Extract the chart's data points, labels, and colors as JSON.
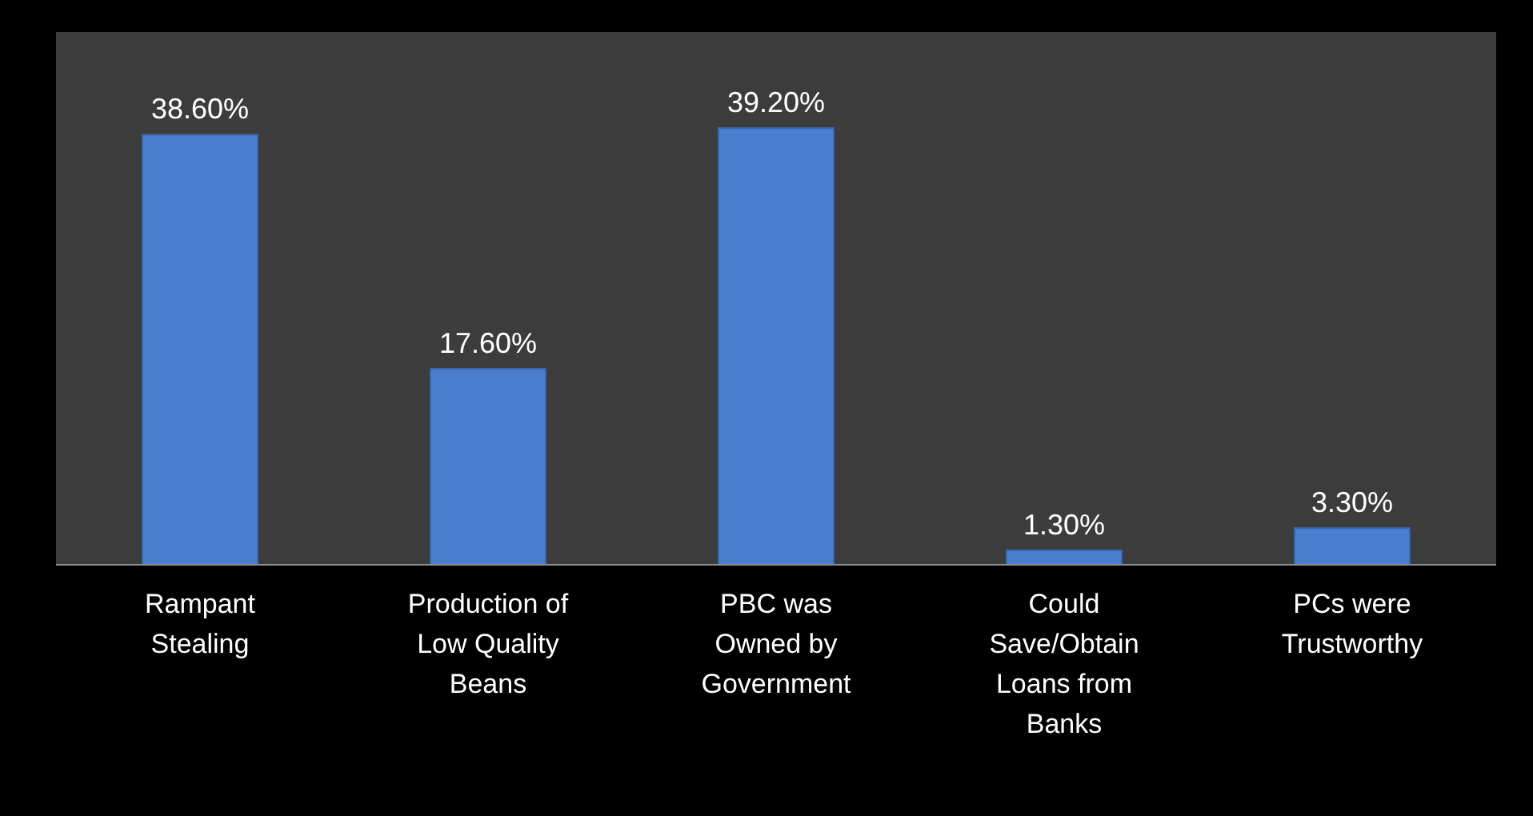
{
  "chart_data": {
    "type": "bar",
    "categories": [
      "Rampant Stealing",
      "Production of Low Quality Beans",
      "PBC was Owned by Government",
      "Could Save/Obtain Loans from Banks",
      "PCs were Trustworthy"
    ],
    "values": [
      38.6,
      17.6,
      39.2,
      1.3,
      3.3
    ],
    "value_labels": [
      "38.60%",
      "17.60%",
      "39.20%",
      "1.30%",
      "3.30%"
    ],
    "color": "#4a7fd0"
  }
}
